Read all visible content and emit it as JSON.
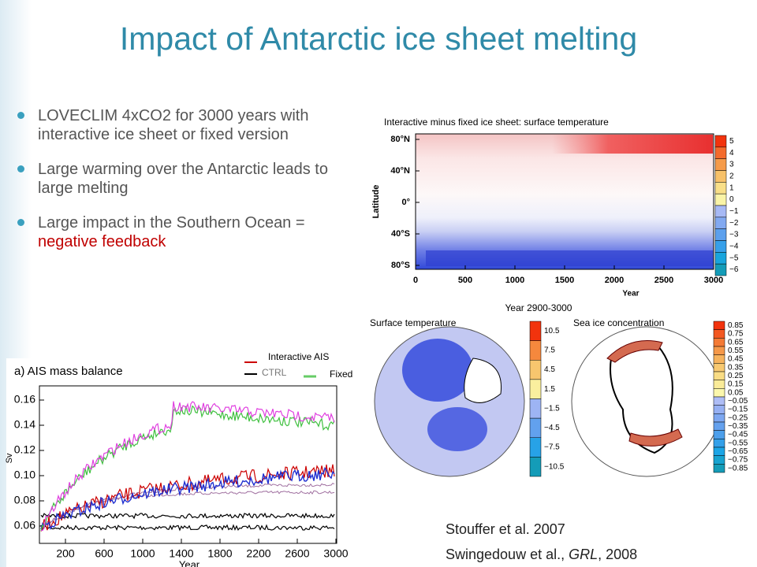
{
  "title": "Impact of Antarctic ice sheet melting",
  "bullets": [
    {
      "text": "LOVECLIM 4xCO2 for 3000 years with interactive ice sheet or fixed version"
    },
    {
      "text": "Large warming over the Antarctic leads to large melting"
    },
    {
      "text": "Large impact in the Southern Ocean = ",
      "highlight": "negative feedback"
    }
  ],
  "hovmoller": {
    "title": "Interactive minus fixed ice sheet: surface temperature",
    "ylabel": "Latitude",
    "yticks": [
      "80°N",
      "40°N",
      "0°",
      "40°S",
      "80°S"
    ],
    "xlabel": "Year",
    "xticks": [
      "0",
      "500",
      "1000",
      "1500",
      "2000",
      "2500",
      "3000"
    ],
    "colorbar": [
      "5",
      "4",
      "3",
      "2",
      "1",
      "0",
      "−1",
      "−2",
      "−3",
      "−4",
      "−5",
      "−6"
    ]
  },
  "maps": {
    "title": "Year 2900-3000",
    "panels": [
      {
        "title": "Surface temperature",
        "colorbar": [
          "10.5",
          "7.5",
          "4.5",
          "1.5",
          "−1.5",
          "−4.5",
          "−7.5",
          "−10.5"
        ]
      },
      {
        "title": "Sea ice concentration",
        "colorbar": [
          "0.85",
          "0.75",
          "0.65",
          "0.55",
          "0.45",
          "0.35",
          "0.25",
          "0.15",
          "0.05",
          "−0.05",
          "−0.15",
          "−0.25",
          "−0.35",
          "−0.45",
          "−0.55",
          "−0.65",
          "−0.75",
          "−0.85"
        ]
      }
    ]
  },
  "mass_balance": {
    "title": "a) AIS mass balance",
    "legend": [
      "Interactive AIS",
      "CTRL",
      "Fixed"
    ],
    "ylabel": "Sv",
    "yticks": [
      "0.16",
      "0.14",
      "0.12",
      "0.10",
      "0.08",
      "0.06"
    ],
    "xlabel": "Year",
    "xticks": [
      "200",
      "600",
      "1000",
      "1400",
      "1800",
      "2200",
      "2600",
      "3000"
    ]
  },
  "references": [
    {
      "text": "Stouffer et al. 2007"
    },
    {
      "text": "Swingedouw et al., ",
      "italic": "GRL",
      "tail": ", 2008"
    }
  ]
}
